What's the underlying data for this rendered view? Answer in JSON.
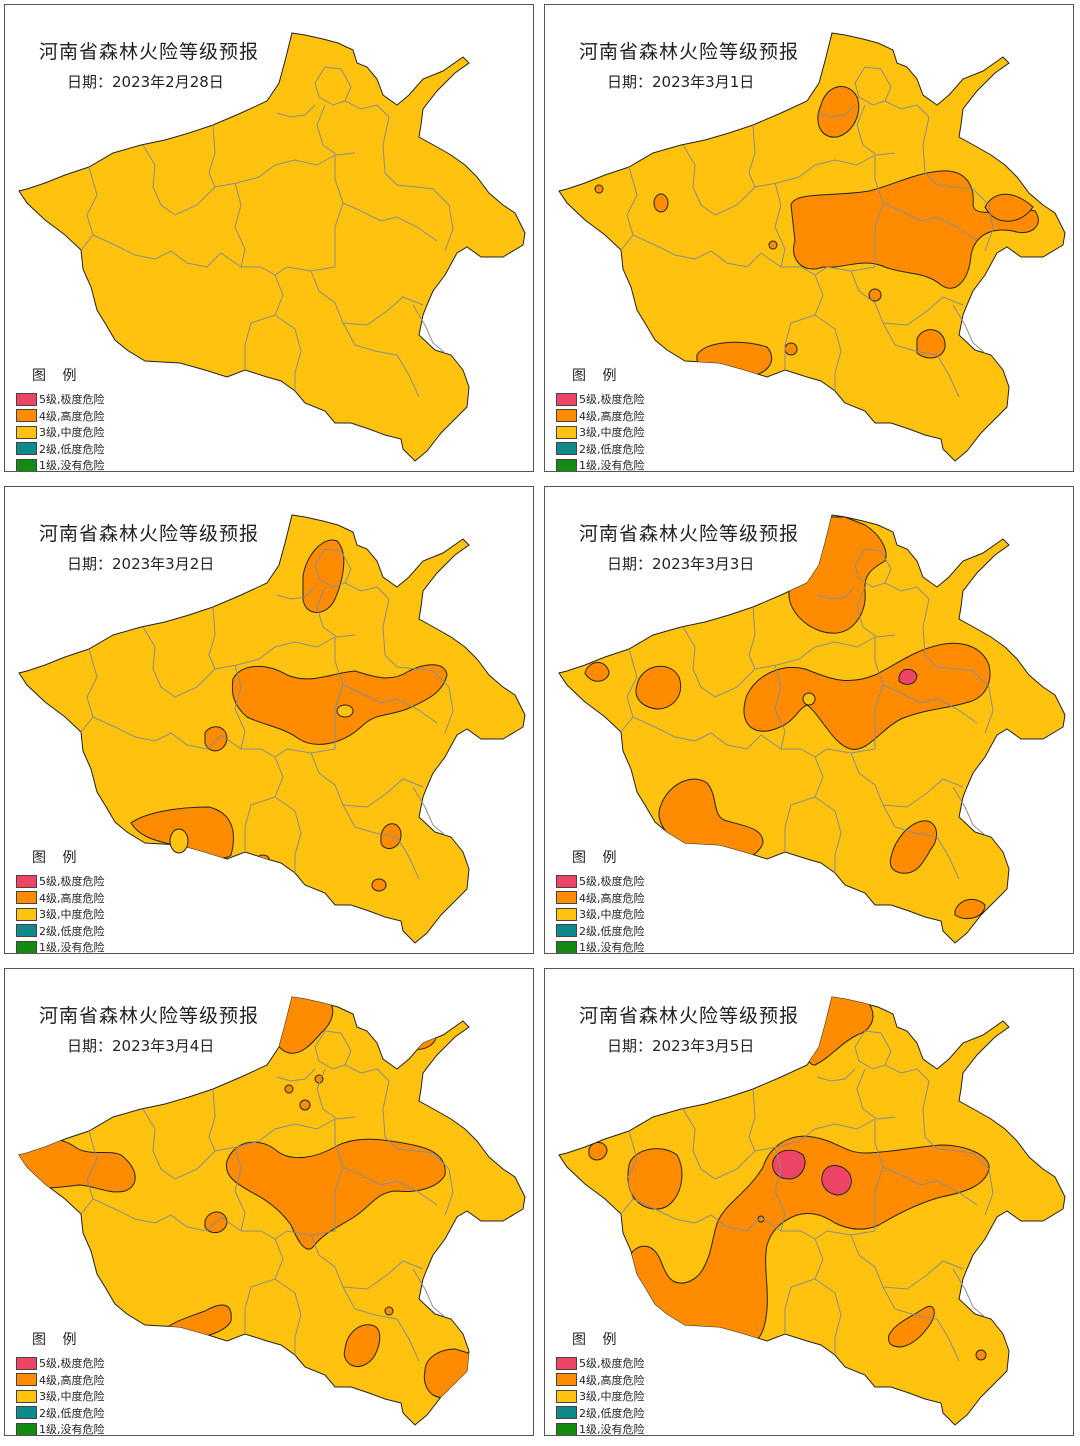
{
  "legend": {
    "title": "图  例",
    "items": [
      {
        "label": "5级,极度危险",
        "color": "#EE4466"
      },
      {
        "label": "4级,高度危险",
        "color": "#FF8C00"
      },
      {
        "label": "3级,中度危险",
        "color": "#FFC20E"
      },
      {
        "label": "2级,低度危险",
        "color": "#0E8A8A"
      },
      {
        "label": "1级,没有危险",
        "color": "#138B13"
      }
    ]
  },
  "panels": [
    {
      "title": "河南省森林火险等级预报",
      "date": "日期：2023年2月28日"
    },
    {
      "title": "河南省森林火险等级预报",
      "date": "日期：2023年3月1日"
    },
    {
      "title": "河南省森林火险等级预报",
      "date": "日期：2023年3月2日"
    },
    {
      "title": "河南省森林火险等级预报",
      "date": "日期：2023年3月3日"
    },
    {
      "title": "河南省森林火险等级预报",
      "date": "日期：2023年3月4日"
    },
    {
      "title": "河南省森林火险等级预报",
      "date": "日期：2023年3月5日"
    }
  ]
}
